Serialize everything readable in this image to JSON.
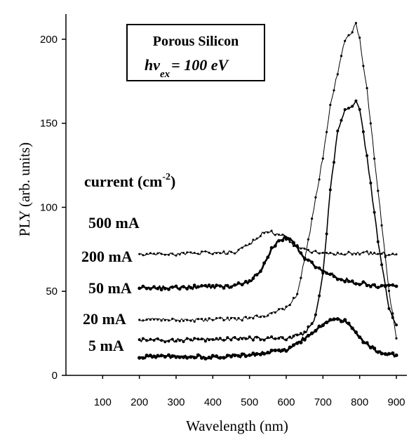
{
  "chart_data": {
    "type": "line",
    "xlabel": "Wavelength (nm)",
    "ylabel": "PLY (arb. units)",
    "xlim": [
      0,
      900
    ],
    "ylim": [
      0,
      215
    ],
    "xticks": [
      100,
      200,
      300,
      400,
      500,
      600,
      700,
      800,
      900
    ],
    "yticks": [
      0,
      50,
      100,
      150,
      200
    ],
    "inset": {
      "title": "Porous Silicon",
      "excitation_main": "hv",
      "excitation_sub": "ex",
      "excitation_value": "= 100 eV"
    },
    "legend_title": {
      "main": "current (cm",
      "sup": "-2",
      "close": ")"
    },
    "series": [
      {
        "name": "500 mA",
        "x": [
          200,
          300,
          400,
          460,
          500,
          540,
          560,
          580,
          600,
          620,
          660,
          700,
          800,
          900
        ],
        "y": [
          72,
          72,
          73,
          73,
          78,
          85,
          85,
          84,
          82,
          78,
          74,
          72,
          73,
          72
        ]
      },
      {
        "name": "200 mA",
        "x": [
          200,
          300,
          400,
          450,
          500,
          530,
          560,
          580,
          600,
          620,
          650,
          700,
          750,
          800,
          850,
          900
        ],
        "y": [
          52,
          52,
          53,
          53,
          56,
          62,
          75,
          80,
          82,
          79,
          70,
          62,
          57,
          55,
          53,
          53
        ]
      },
      {
        "name": "50 mA",
        "x": [
          200,
          300,
          400,
          500,
          550,
          600,
          630,
          660,
          700,
          720,
          740,
          760,
          780,
          790,
          800,
          820,
          850,
          880,
          900
        ],
        "y": [
          33,
          33,
          33,
          34,
          36,
          40,
          48,
          80,
          130,
          160,
          180,
          200,
          205,
          210,
          200,
          170,
          110,
          50,
          22
        ]
      },
      {
        "name": "20 mA",
        "x": [
          200,
          300,
          400,
          500,
          600,
          650,
          680,
          700,
          720,
          740,
          760,
          780,
          790,
          800,
          820,
          850,
          880,
          900
        ],
        "y": [
          21,
          21,
          21,
          22,
          22,
          25,
          35,
          60,
          110,
          145,
          158,
          160,
          164,
          158,
          130,
          80,
          40,
          30
        ]
      },
      {
        "name": "5 mA",
        "x": [
          200,
          300,
          400,
          500,
          600,
          650,
          700,
          720,
          740,
          760,
          780,
          800,
          850,
          900
        ],
        "y": [
          11,
          11,
          11,
          12,
          15,
          22,
          30,
          33,
          34,
          32,
          28,
          22,
          14,
          12
        ]
      }
    ]
  }
}
